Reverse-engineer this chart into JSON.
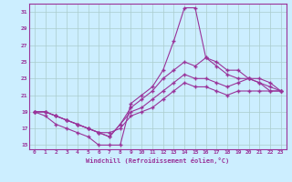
{
  "xlabel": "Windchill (Refroidissement éolien,°C)",
  "xlim": [
    -0.5,
    23.5
  ],
  "ylim": [
    14.5,
    32
  ],
  "yticks": [
    15,
    17,
    19,
    21,
    23,
    25,
    27,
    29,
    31
  ],
  "xticks": [
    0,
    1,
    2,
    3,
    4,
    5,
    6,
    7,
    8,
    9,
    10,
    11,
    12,
    13,
    14,
    15,
    16,
    17,
    18,
    19,
    20,
    21,
    22,
    23
  ],
  "line_color": "#993399",
  "bg_color": "#cceeff",
  "grid_color": "#aacccc",
  "series": [
    {
      "x": [
        0,
        1,
        2,
        3,
        4,
        5,
        6,
        7,
        8,
        9,
        10,
        11,
        12,
        13,
        14,
        15,
        16,
        17,
        18,
        19,
        20,
        21,
        22,
        23
      ],
      "y": [
        19,
        18.5,
        17.5,
        17,
        16.5,
        16,
        15,
        15,
        15,
        20,
        21,
        22,
        24,
        27.5,
        31.5,
        31.5,
        25.5,
        25,
        24,
        24,
        23,
        22.5,
        21.5,
        21.5
      ]
    },
    {
      "x": [
        0,
        1,
        2,
        3,
        4,
        5,
        6,
        7,
        8,
        9,
        10,
        11,
        12,
        13,
        14,
        15,
        16,
        17,
        18,
        19,
        20,
        21,
        22,
        23
      ],
      "y": [
        19,
        19,
        18.5,
        18,
        17.5,
        17,
        16.5,
        16,
        17.5,
        19.5,
        20.5,
        21.5,
        23,
        24,
        25,
        24.5,
        25.5,
        24.5,
        23.5,
        23,
        23,
        22.5,
        22,
        21.5
      ]
    },
    {
      "x": [
        0,
        1,
        2,
        3,
        4,
        5,
        6,
        7,
        8,
        9,
        10,
        11,
        12,
        13,
        14,
        15,
        16,
        17,
        18,
        19,
        20,
        21,
        22,
        23
      ],
      "y": [
        19,
        19,
        18.5,
        18,
        17.5,
        17,
        16.5,
        16,
        17.5,
        19,
        19.5,
        20.5,
        21.5,
        22.5,
        23.5,
        23,
        23,
        22.5,
        22,
        22.5,
        23,
        23,
        22.5,
        21.5
      ]
    },
    {
      "x": [
        0,
        1,
        2,
        3,
        4,
        5,
        6,
        7,
        8,
        9,
        10,
        11,
        12,
        13,
        14,
        15,
        16,
        17,
        18,
        19,
        20,
        21,
        22,
        23
      ],
      "y": [
        19,
        19,
        18.5,
        18,
        17.5,
        17,
        16.5,
        16.5,
        17,
        18.5,
        19,
        19.5,
        20.5,
        21.5,
        22.5,
        22,
        22,
        21.5,
        21,
        21.5,
        21.5,
        21.5,
        21.5,
        21.5
      ]
    }
  ]
}
